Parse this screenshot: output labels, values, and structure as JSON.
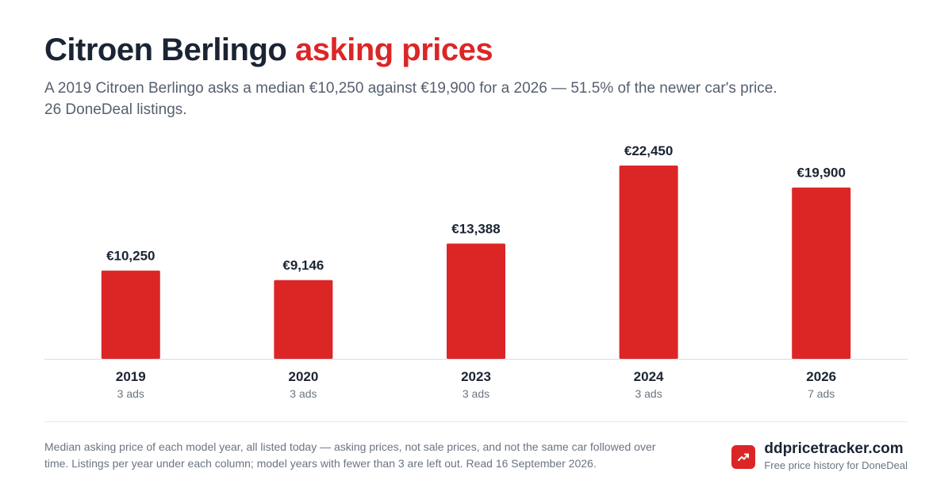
{
  "header": {
    "title_main": "Citroen Berlingo",
    "title_accent": "asking prices",
    "subtitle_line1": "A 2019 Citroen Berlingo asks a median €10,250 against €19,900 for a 2026 — 51.5% of the newer car's price.",
    "subtitle_line2": "26 DoneDeal listings."
  },
  "chart_data": {
    "type": "bar",
    "categories": [
      "2019",
      "2020",
      "2023",
      "2024",
      "2026"
    ],
    "values": [
      10250,
      9146,
      13388,
      22450,
      19900
    ],
    "value_labels": [
      "€10,250",
      "€9,146",
      "€13,388",
      "€22,450",
      "€19,900"
    ],
    "counts": [
      "3 ads",
      "3 ads",
      "3 ads",
      "3 ads",
      "7 ads"
    ],
    "ylim": [
      0,
      23000
    ],
    "bar_color": "#dc2626",
    "grid": false
  },
  "footer": {
    "note_line1": "Median asking price of each model year, all listed today — asking prices, not sale prices, and not the same car followed over",
    "note_line2": "time. Listings per year under each column; model years with fewer than 3 are left out. Read 16 September 2026.",
    "brand_name": "ddpricetracker.com",
    "brand_tagline": "Free price history for DoneDeal",
    "brand_icon": "trending-up-icon",
    "accent_color": "#dc2626"
  }
}
